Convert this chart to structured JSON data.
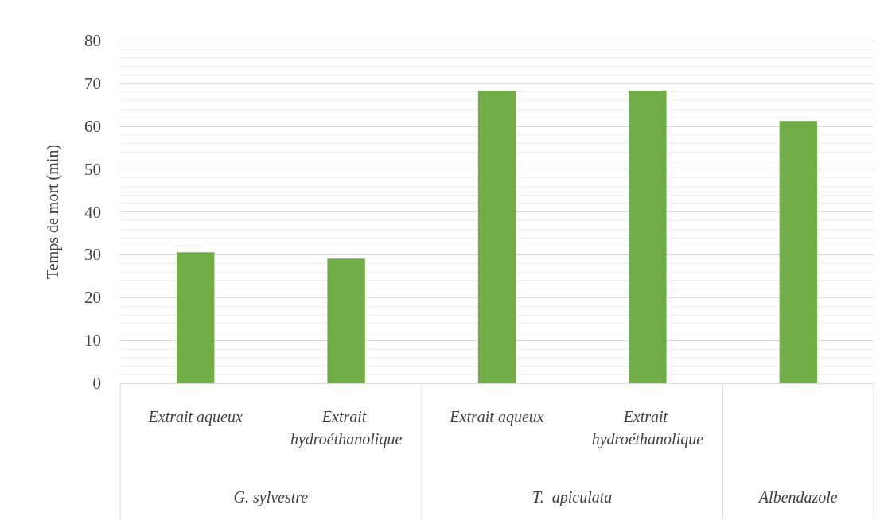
{
  "chart_data": {
    "type": "bar",
    "ylabel": "Temps de mort (min)",
    "categories": [
      "Extrait aqueux",
      "Extrait hydroéthanolique",
      "Extrait aqueux",
      "Extrait hydroéthanolique",
      null
    ],
    "values": [
      30.6,
      29.1,
      68.3,
      68.3,
      61.2
    ],
    "color": "#70ad47",
    "ylim": [
      0,
      80
    ],
    "yticks": [
      0,
      10,
      20,
      30,
      40,
      50,
      60,
      70,
      80
    ],
    "grid": "y",
    "annotations": [
      "G. sylvestre",
      "T.  apiculata",
      "Albendazole"
    ]
  }
}
